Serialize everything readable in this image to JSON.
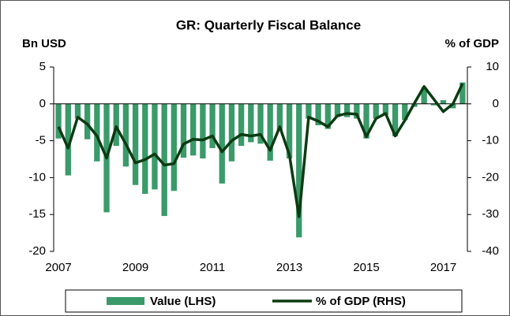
{
  "chart_data": {
    "type": "bar-line",
    "title": "GR: Quarterly Fiscal Balance",
    "y_label": "Bn USD",
    "y2_label": "% of GDP",
    "categories": [
      "2007",
      null,
      null,
      null,
      null,
      null,
      null,
      null,
      "2009",
      null,
      null,
      null,
      null,
      null,
      null,
      null,
      "2011",
      null,
      null,
      null,
      null,
      null,
      null,
      null,
      "2013",
      null,
      null,
      null,
      null,
      null,
      null,
      null,
      "2015",
      null,
      null,
      null,
      null,
      null,
      null,
      null,
      "2017",
      null,
      null
    ],
    "series": [
      {
        "name": "Value (LHS)",
        "type": "bar",
        "color": "#3a9a6a",
        "values": [
          -4.7,
          -9.7,
          -2,
          -4.8,
          -7.8,
          -14.7,
          -5.7,
          -8.5,
          -11,
          -12.2,
          -11.6,
          -15.2,
          -11.8,
          -7.3,
          -7,
          -7.4,
          -6,
          -10.8,
          -7.8,
          -5.7,
          -5.2,
          -5.4,
          -7.7,
          -3.6,
          -7.4,
          -18.1,
          -2,
          -2.9,
          -3.4,
          -1.8,
          -1.8,
          -2,
          -4.7,
          -2,
          -1.5,
          -4.4,
          -2.2,
          -0.4,
          2.2,
          -0.2,
          0.5,
          -0.6,
          2.9
        ]
      },
      {
        "name": "% of GDP (RHS)",
        "type": "line",
        "axis": "y2",
        "color": "#0c3b12",
        "values": [
          -6.2,
          -12,
          -3.6,
          -5.5,
          -8.7,
          -14.7,
          -6.2,
          -10.9,
          -16,
          -15.1,
          -13.6,
          -16.6,
          -16.2,
          -10.9,
          -9.6,
          -9.8,
          -8.7,
          -13,
          -10,
          -8.3,
          -8.7,
          -8.3,
          -12.6,
          -6.2,
          -13.8,
          -30.6,
          -3.6,
          -4.7,
          -6.2,
          -3.2,
          -2.6,
          -2.8,
          -8.9,
          -4,
          -2.6,
          -8.7,
          -4.5,
          0.2,
          4.7,
          1.3,
          -2.1,
          0,
          5.5
        ]
      }
    ],
    "ylim": [
      -20,
      5
    ],
    "yticks": [
      -20,
      -15,
      -10,
      -5,
      0,
      5
    ],
    "y2lim": [
      -40,
      10
    ],
    "y2ticks": [
      -40,
      -30,
      -20,
      -10,
      0,
      10
    ],
    "legend": "bottom"
  }
}
